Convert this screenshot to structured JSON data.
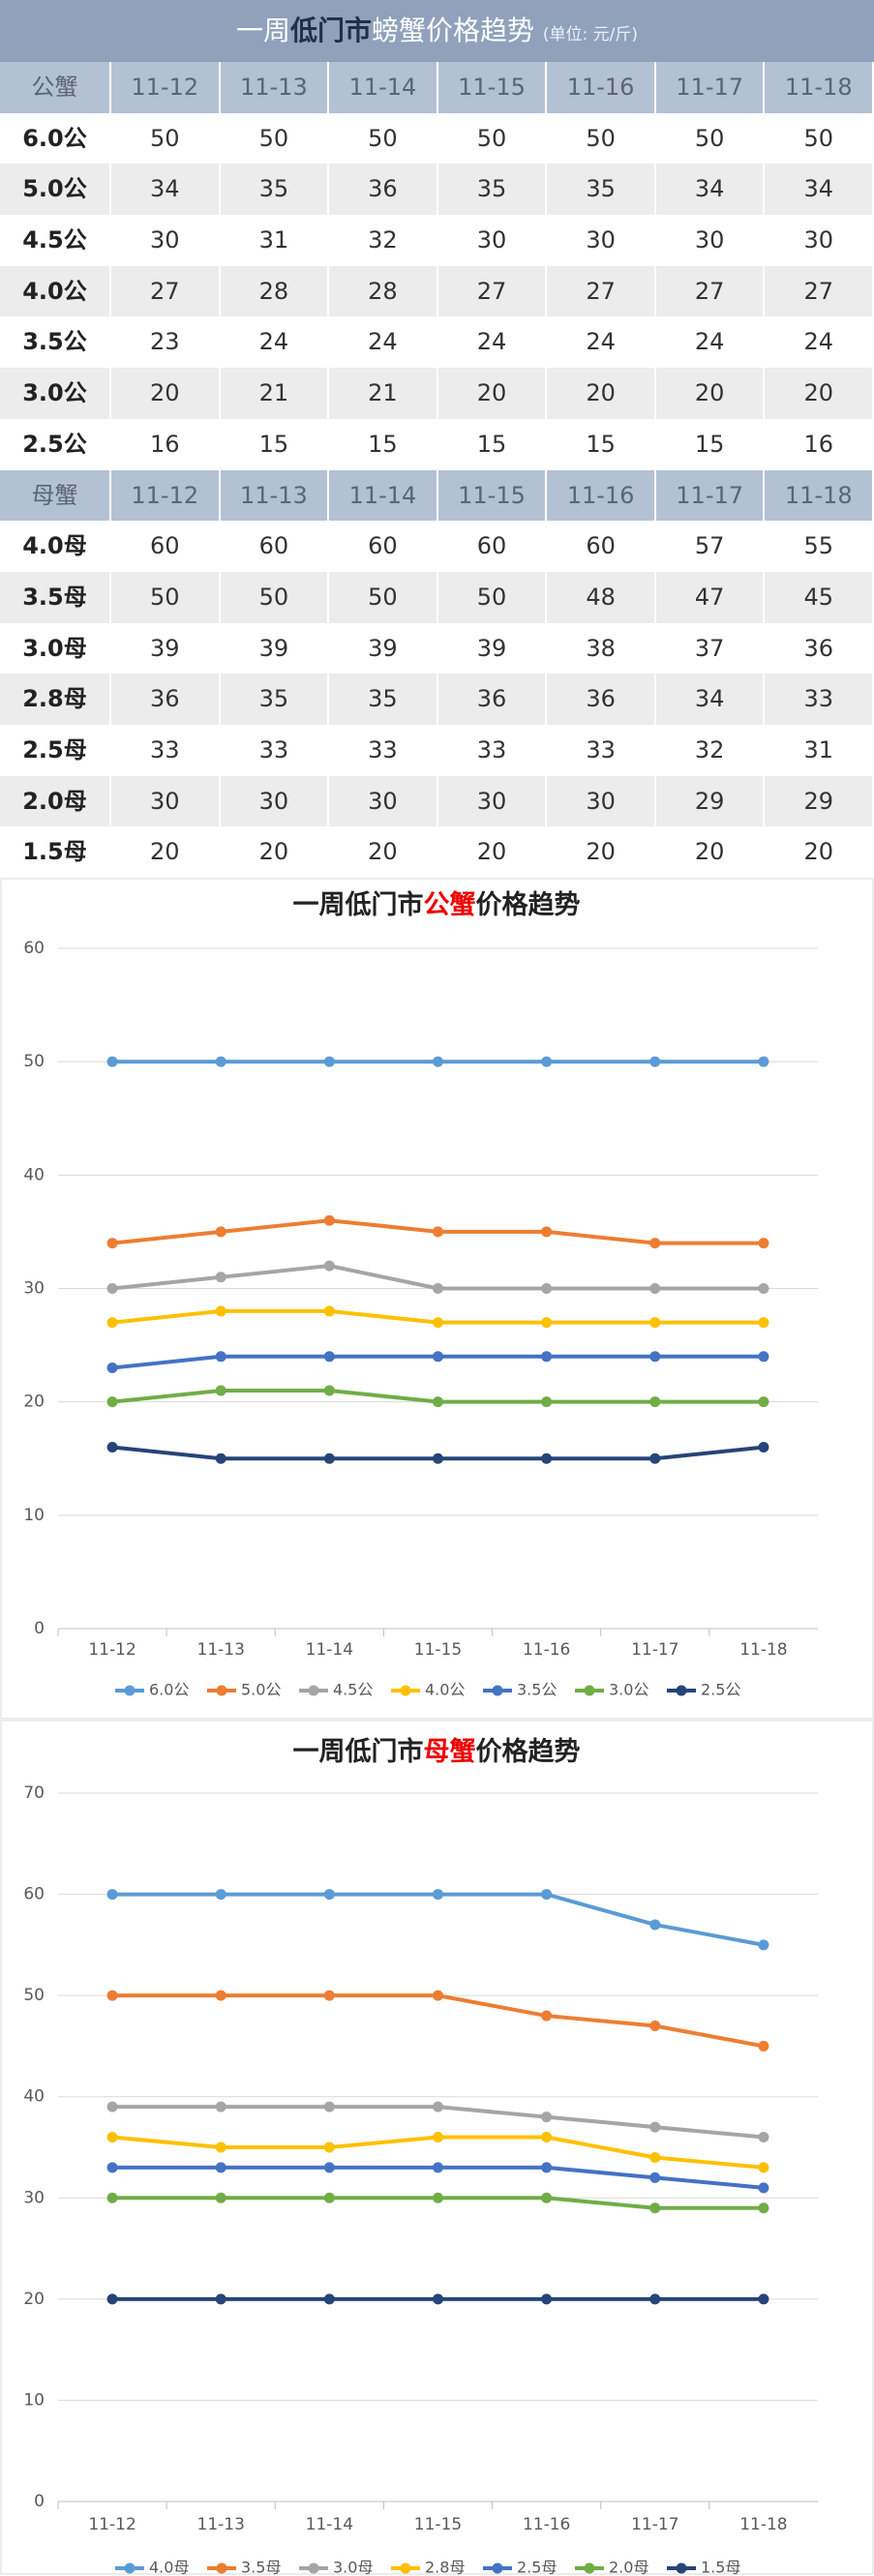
{
  "table": {
    "title": [
      "一周",
      "低门市",
      "螃蟹价格趋势"
    ],
    "unit": "(单位: 元/斤)",
    "sections": [
      {
        "header": [
          "公蟹",
          "11-12",
          "11-13",
          "11-14",
          "11-15",
          "11-16",
          "11-17",
          "11-18"
        ],
        "rows": [
          [
            "6.0公",
            50,
            50,
            50,
            50,
            50,
            50,
            50
          ],
          [
            "5.0公",
            34,
            35,
            36,
            35,
            35,
            34,
            34
          ],
          [
            "4.5公",
            30,
            31,
            32,
            30,
            30,
            30,
            30
          ],
          [
            "4.0公",
            27,
            28,
            28,
            27,
            27,
            27,
            27
          ],
          [
            "3.5公",
            23,
            24,
            24,
            24,
            24,
            24,
            24
          ],
          [
            "3.0公",
            20,
            21,
            21,
            20,
            20,
            20,
            20
          ],
          [
            "2.5公",
            16,
            15,
            15,
            15,
            15,
            15,
            16
          ]
        ]
      },
      {
        "header": [
          "母蟹",
          "11-12",
          "11-13",
          "11-14",
          "11-15",
          "11-16",
          "11-17",
          "11-18"
        ],
        "rows": [
          [
            "4.0母",
            60,
            60,
            60,
            60,
            60,
            57,
            55
          ],
          [
            "3.5母",
            50,
            50,
            50,
            50,
            48,
            47,
            45
          ],
          [
            "3.0母",
            39,
            39,
            39,
            39,
            38,
            37,
            36
          ],
          [
            "2.8母",
            36,
            35,
            35,
            36,
            36,
            34,
            33
          ],
          [
            "2.5母",
            33,
            33,
            33,
            33,
            33,
            32,
            31
          ],
          [
            "2.0母",
            30,
            30,
            30,
            30,
            30,
            29,
            29
          ],
          [
            "1.5母",
            20,
            20,
            20,
            20,
            20,
            20,
            20
          ]
        ]
      }
    ]
  },
  "chart_data": [
    {
      "type": "line",
      "title": [
        "一周低门市",
        "公蟹",
        "价格趋势"
      ],
      "categories": [
        "11-12",
        "11-13",
        "11-14",
        "11-15",
        "11-16",
        "11-17",
        "11-18"
      ],
      "ylim": [
        0,
        60
      ],
      "yticks": [
        0,
        10,
        20,
        30,
        40,
        50,
        60
      ],
      "grid": true,
      "series": [
        {
          "name": "6.0公",
          "color": "#5b9bd5",
          "values": [
            50,
            50,
            50,
            50,
            50,
            50,
            50
          ]
        },
        {
          "name": "5.0公",
          "color": "#ed7d31",
          "values": [
            34,
            35,
            36,
            35,
            35,
            34,
            34
          ]
        },
        {
          "name": "4.5公",
          "color": "#a5a5a5",
          "values": [
            30,
            31,
            32,
            30,
            30,
            30,
            30
          ]
        },
        {
          "name": "4.0公",
          "color": "#ffc000",
          "values": [
            27,
            28,
            28,
            27,
            27,
            27,
            27
          ]
        },
        {
          "name": "3.5公",
          "color": "#4472c4",
          "values": [
            23,
            24,
            24,
            24,
            24,
            24,
            24
          ]
        },
        {
          "name": "3.0公",
          "color": "#70ad47",
          "values": [
            20,
            21,
            21,
            20,
            20,
            20,
            20
          ]
        },
        {
          "name": "2.5公",
          "color": "#264478",
          "values": [
            16,
            15,
            15,
            15,
            15,
            15,
            16
          ]
        }
      ]
    },
    {
      "type": "line",
      "title": [
        "一周低门市",
        "母蟹",
        "价格趋势"
      ],
      "categories": [
        "11-12",
        "11-13",
        "11-14",
        "11-15",
        "11-16",
        "11-17",
        "11-18"
      ],
      "ylim": [
        0,
        70
      ],
      "yticks": [
        0,
        10,
        20,
        30,
        40,
        50,
        60,
        70
      ],
      "grid": true,
      "series": [
        {
          "name": "4.0母",
          "color": "#5b9bd5",
          "values": [
            60,
            60,
            60,
            60,
            60,
            57,
            55
          ]
        },
        {
          "name": "3.5母",
          "color": "#ed7d31",
          "values": [
            50,
            50,
            50,
            50,
            48,
            47,
            45
          ]
        },
        {
          "name": "3.0母",
          "color": "#a5a5a5",
          "values": [
            39,
            39,
            39,
            39,
            38,
            37,
            36
          ]
        },
        {
          "name": "2.8母",
          "color": "#ffc000",
          "values": [
            36,
            35,
            35,
            36,
            36,
            34,
            33
          ]
        },
        {
          "name": "2.5母",
          "color": "#4472c4",
          "values": [
            33,
            33,
            33,
            33,
            33,
            32,
            31
          ]
        },
        {
          "name": "2.0母",
          "color": "#70ad47",
          "values": [
            30,
            30,
            30,
            30,
            30,
            29,
            29
          ]
        },
        {
          "name": "1.5母",
          "color": "#264478",
          "values": [
            20,
            20,
            20,
            20,
            20,
            20,
            20
          ]
        }
      ]
    }
  ]
}
